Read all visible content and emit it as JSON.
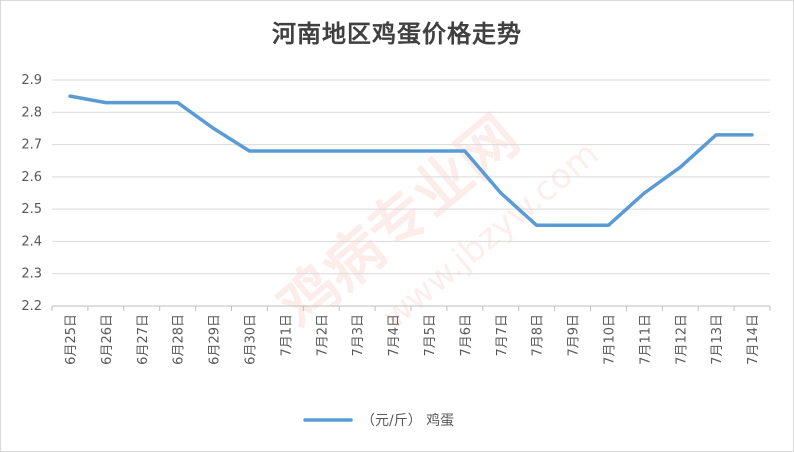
{
  "chart_data": {
    "type": "line",
    "title": "河南地区鸡蛋价格走势",
    "categories": [
      "6月25日",
      "6月26日",
      "6月27日",
      "6月28日",
      "6月29日",
      "6月30日",
      "7月1日",
      "7月2日",
      "7月3日",
      "7月4日",
      "7月5日",
      "7月6日",
      "7月7日",
      "7月8日",
      "7月9日",
      "7月10日",
      "7月11日",
      "7月12日",
      "7月13日",
      "7月14日"
    ],
    "series": [
      {
        "name": "（元/斤） 鸡蛋",
        "color": "#5b9bd5",
        "values": [
          2.85,
          2.83,
          2.83,
          2.83,
          2.75,
          2.68,
          2.68,
          2.68,
          2.68,
          2.68,
          2.68,
          2.68,
          2.55,
          2.45,
          2.45,
          2.45,
          2.55,
          2.63,
          2.73,
          2.73
        ]
      }
    ],
    "ylim": [
      2.2,
      2.9
    ],
    "yticks": [
      "2.2",
      "2.3",
      "2.4",
      "2.5",
      "2.6",
      "2.7",
      "2.8",
      "2.9"
    ],
    "xlabel": "",
    "ylabel": "",
    "grid": true,
    "legend": "bottom"
  },
  "watermark": {
    "main": "鸡病专业网",
    "url": "www.jbzyw.com"
  }
}
